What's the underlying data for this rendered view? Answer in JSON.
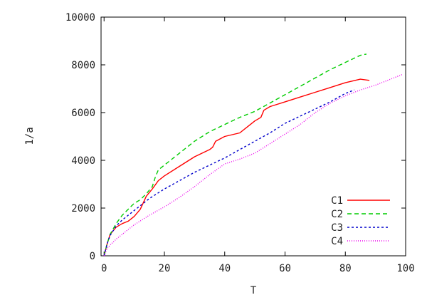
{
  "chart_data": {
    "type": "line",
    "title": "",
    "xlabel": "T",
    "ylabel": "1/a",
    "xlim": [
      -1,
      100
    ],
    "ylim": [
      0,
      10000
    ],
    "xticks": [
      "0",
      "20",
      "40",
      "60",
      "80",
      "100"
    ],
    "yticks": [
      "0",
      "2000",
      "4000",
      "6000",
      "8000",
      "10000"
    ],
    "legend_position": "bottom-right",
    "grid": false,
    "series": [
      {
        "name": "C1",
        "color": "#ff0000",
        "dash": "solid",
        "x": [
          0,
          1,
          2,
          4,
          6,
          8,
          10,
          12,
          14,
          16,
          18,
          20,
          25,
          30,
          35,
          36,
          37,
          40,
          45,
          48,
          50,
          52,
          53,
          55,
          60,
          65,
          70,
          75,
          80,
          85,
          88
        ],
        "y": [
          0,
          500,
          900,
          1200,
          1350,
          1450,
          1650,
          1950,
          2500,
          2800,
          3150,
          3350,
          3750,
          4150,
          4450,
          4550,
          4800,
          5000,
          5150,
          5450,
          5650,
          5800,
          6100,
          6250,
          6450,
          6650,
          6850,
          7050,
          7250,
          7400,
          7350
        ]
      },
      {
        "name": "C2",
        "color": "#00cc00",
        "dash": "6,4",
        "x": [
          0,
          1,
          2,
          4,
          6,
          8,
          10,
          12,
          14,
          16,
          17,
          18,
          20,
          25,
          30,
          35,
          40,
          45,
          50,
          55,
          60,
          65,
          70,
          75,
          80,
          85,
          87
        ],
        "y": [
          0,
          500,
          900,
          1350,
          1700,
          1950,
          2200,
          2350,
          2600,
          2900,
          3300,
          3600,
          3800,
          4300,
          4800,
          5200,
          5500,
          5800,
          6050,
          6400,
          6750,
          7100,
          7450,
          7800,
          8100,
          8400,
          8450
        ]
      },
      {
        "name": "C3",
        "color": "#0000cc",
        "dash": "3,3",
        "x": [
          0,
          1,
          2,
          4,
          6,
          8,
          10,
          15,
          20,
          25,
          30,
          35,
          40,
          45,
          50,
          55,
          60,
          65,
          70,
          75,
          80,
          83
        ],
        "y": [
          0,
          500,
          850,
          1250,
          1500,
          1700,
          1900,
          2400,
          2800,
          3150,
          3500,
          3800,
          4100,
          4450,
          4800,
          5150,
          5550,
          5850,
          6150,
          6450,
          6800,
          6950
        ]
      },
      {
        "name": "C4",
        "color": "#ee00ee",
        "dash": "1,2",
        "x": [
          0,
          1,
          2,
          4,
          6,
          8,
          10,
          15,
          20,
          25,
          30,
          35,
          40,
          45,
          50,
          55,
          60,
          65,
          70,
          75,
          80,
          85,
          90,
          95,
          99
        ],
        "y": [
          0,
          300,
          450,
          700,
          900,
          1100,
          1300,
          1700,
          2050,
          2450,
          2900,
          3400,
          3850,
          4050,
          4300,
          4700,
          5100,
          5500,
          6000,
          6400,
          6700,
          6950,
          7150,
          7400,
          7600
        ]
      }
    ]
  }
}
